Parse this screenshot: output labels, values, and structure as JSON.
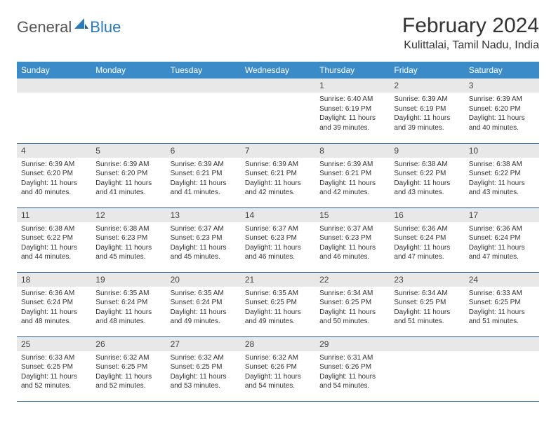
{
  "logo": {
    "general": "General",
    "blue": "Blue"
  },
  "header": {
    "month_title": "February 2024",
    "location": "Kulittalai, Tamil Nadu, India"
  },
  "colors": {
    "header_bg": "#3b8bc9",
    "header_text": "#ffffff",
    "daynum_bg": "#e8e8e8",
    "row_divider": "#1f5c8c",
    "body_text": "#333333",
    "logo_blue": "#2a7ab9"
  },
  "weekdays": [
    "Sunday",
    "Monday",
    "Tuesday",
    "Wednesday",
    "Thursday",
    "Friday",
    "Saturday"
  ],
  "weeks": [
    [
      null,
      null,
      null,
      null,
      {
        "day": "1",
        "sunrise": "Sunrise: 6:40 AM",
        "sunset": "Sunset: 6:19 PM",
        "daylight": "Daylight: 11 hours and 39 minutes."
      },
      {
        "day": "2",
        "sunrise": "Sunrise: 6:39 AM",
        "sunset": "Sunset: 6:19 PM",
        "daylight": "Daylight: 11 hours and 39 minutes."
      },
      {
        "day": "3",
        "sunrise": "Sunrise: 6:39 AM",
        "sunset": "Sunset: 6:20 PM",
        "daylight": "Daylight: 11 hours and 40 minutes."
      }
    ],
    [
      {
        "day": "4",
        "sunrise": "Sunrise: 6:39 AM",
        "sunset": "Sunset: 6:20 PM",
        "daylight": "Daylight: 11 hours and 40 minutes."
      },
      {
        "day": "5",
        "sunrise": "Sunrise: 6:39 AM",
        "sunset": "Sunset: 6:20 PM",
        "daylight": "Daylight: 11 hours and 41 minutes."
      },
      {
        "day": "6",
        "sunrise": "Sunrise: 6:39 AM",
        "sunset": "Sunset: 6:21 PM",
        "daylight": "Daylight: 11 hours and 41 minutes."
      },
      {
        "day": "7",
        "sunrise": "Sunrise: 6:39 AM",
        "sunset": "Sunset: 6:21 PM",
        "daylight": "Daylight: 11 hours and 42 minutes."
      },
      {
        "day": "8",
        "sunrise": "Sunrise: 6:39 AM",
        "sunset": "Sunset: 6:21 PM",
        "daylight": "Daylight: 11 hours and 42 minutes."
      },
      {
        "day": "9",
        "sunrise": "Sunrise: 6:38 AM",
        "sunset": "Sunset: 6:22 PM",
        "daylight": "Daylight: 11 hours and 43 minutes."
      },
      {
        "day": "10",
        "sunrise": "Sunrise: 6:38 AM",
        "sunset": "Sunset: 6:22 PM",
        "daylight": "Daylight: 11 hours and 43 minutes."
      }
    ],
    [
      {
        "day": "11",
        "sunrise": "Sunrise: 6:38 AM",
        "sunset": "Sunset: 6:22 PM",
        "daylight": "Daylight: 11 hours and 44 minutes."
      },
      {
        "day": "12",
        "sunrise": "Sunrise: 6:38 AM",
        "sunset": "Sunset: 6:23 PM",
        "daylight": "Daylight: 11 hours and 45 minutes."
      },
      {
        "day": "13",
        "sunrise": "Sunrise: 6:37 AM",
        "sunset": "Sunset: 6:23 PM",
        "daylight": "Daylight: 11 hours and 45 minutes."
      },
      {
        "day": "14",
        "sunrise": "Sunrise: 6:37 AM",
        "sunset": "Sunset: 6:23 PM",
        "daylight": "Daylight: 11 hours and 46 minutes."
      },
      {
        "day": "15",
        "sunrise": "Sunrise: 6:37 AM",
        "sunset": "Sunset: 6:23 PM",
        "daylight": "Daylight: 11 hours and 46 minutes."
      },
      {
        "day": "16",
        "sunrise": "Sunrise: 6:36 AM",
        "sunset": "Sunset: 6:24 PM",
        "daylight": "Daylight: 11 hours and 47 minutes."
      },
      {
        "day": "17",
        "sunrise": "Sunrise: 6:36 AM",
        "sunset": "Sunset: 6:24 PM",
        "daylight": "Daylight: 11 hours and 47 minutes."
      }
    ],
    [
      {
        "day": "18",
        "sunrise": "Sunrise: 6:36 AM",
        "sunset": "Sunset: 6:24 PM",
        "daylight": "Daylight: 11 hours and 48 minutes."
      },
      {
        "day": "19",
        "sunrise": "Sunrise: 6:35 AM",
        "sunset": "Sunset: 6:24 PM",
        "daylight": "Daylight: 11 hours and 48 minutes."
      },
      {
        "day": "20",
        "sunrise": "Sunrise: 6:35 AM",
        "sunset": "Sunset: 6:24 PM",
        "daylight": "Daylight: 11 hours and 49 minutes."
      },
      {
        "day": "21",
        "sunrise": "Sunrise: 6:35 AM",
        "sunset": "Sunset: 6:25 PM",
        "daylight": "Daylight: 11 hours and 49 minutes."
      },
      {
        "day": "22",
        "sunrise": "Sunrise: 6:34 AM",
        "sunset": "Sunset: 6:25 PM",
        "daylight": "Daylight: 11 hours and 50 minutes."
      },
      {
        "day": "23",
        "sunrise": "Sunrise: 6:34 AM",
        "sunset": "Sunset: 6:25 PM",
        "daylight": "Daylight: 11 hours and 51 minutes."
      },
      {
        "day": "24",
        "sunrise": "Sunrise: 6:33 AM",
        "sunset": "Sunset: 6:25 PM",
        "daylight": "Daylight: 11 hours and 51 minutes."
      }
    ],
    [
      {
        "day": "25",
        "sunrise": "Sunrise: 6:33 AM",
        "sunset": "Sunset: 6:25 PM",
        "daylight": "Daylight: 11 hours and 52 minutes."
      },
      {
        "day": "26",
        "sunrise": "Sunrise: 6:32 AM",
        "sunset": "Sunset: 6:25 PM",
        "daylight": "Daylight: 11 hours and 52 minutes."
      },
      {
        "day": "27",
        "sunrise": "Sunrise: 6:32 AM",
        "sunset": "Sunset: 6:25 PM",
        "daylight": "Daylight: 11 hours and 53 minutes."
      },
      {
        "day": "28",
        "sunrise": "Sunrise: 6:32 AM",
        "sunset": "Sunset: 6:26 PM",
        "daylight": "Daylight: 11 hours and 54 minutes."
      },
      {
        "day": "29",
        "sunrise": "Sunrise: 6:31 AM",
        "sunset": "Sunset: 6:26 PM",
        "daylight": "Daylight: 11 hours and 54 minutes."
      },
      null,
      null
    ]
  ]
}
